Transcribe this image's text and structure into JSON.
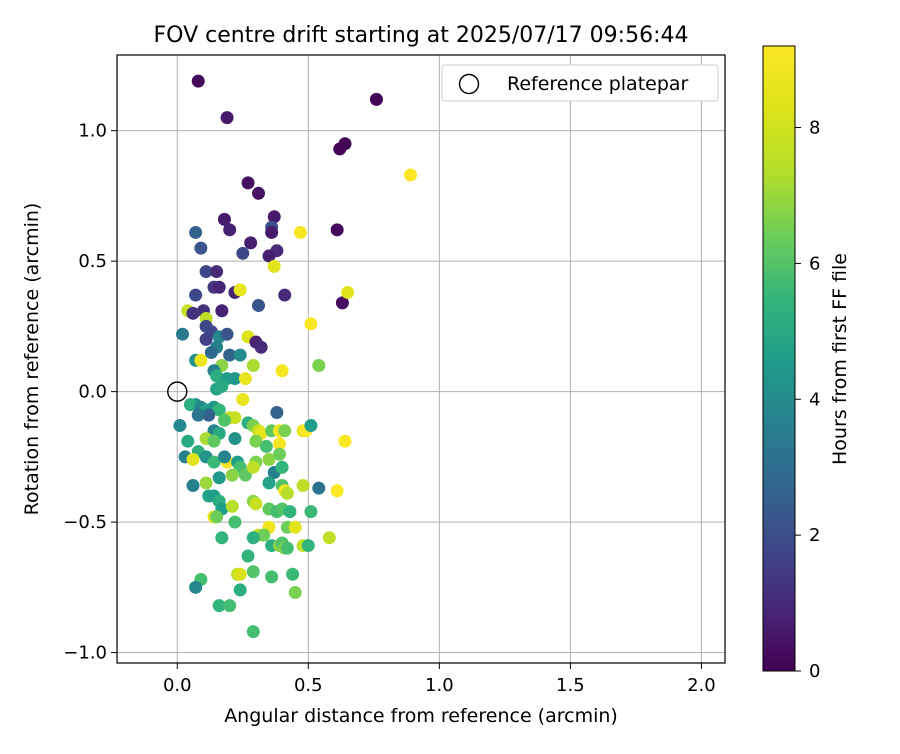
{
  "chart_data": {
    "type": "scatter",
    "title": "FOV centre drift starting at 2025/07/17 09:56:44",
    "xlabel": "Angular distance from reference (arcmin)",
    "ylabel": "Rotation from reference (arcmin)",
    "xlim": [
      -0.23,
      2.09
    ],
    "ylim": [
      -1.04,
      1.29
    ],
    "x_ticks": [
      0.0,
      0.5,
      1.0,
      1.5,
      2.0
    ],
    "x_tick_labels": [
      "0.0",
      "0.5",
      "1.0",
      "1.5",
      "2.0"
    ],
    "y_ticks": [
      -1.0,
      -0.5,
      0.0,
      0.5,
      1.0
    ],
    "y_tick_labels": [
      "−1.0",
      "−0.5",
      "0.0",
      "0.5",
      "1.0"
    ],
    "grid": true,
    "legend": {
      "position": "top-right",
      "entries": [
        "Reference platepar"
      ]
    },
    "reference_point": {
      "x": 0.0,
      "y": 0.0,
      "marker": "open-circle"
    },
    "colorbar": {
      "label": "Hours from first FF file",
      "min": 0,
      "max": 9.2,
      "ticks": [
        0,
        2,
        4,
        6,
        8
      ],
      "colormap": "viridis"
    },
    "points": [
      [
        0.08,
        1.19,
        0.2
      ],
      [
        0.76,
        1.12,
        0.1
      ],
      [
        0.19,
        1.05,
        0.6
      ],
      [
        0.64,
        0.95,
        0.1
      ],
      [
        0.62,
        0.93,
        0.1
      ],
      [
        0.27,
        0.8,
        0.3
      ],
      [
        0.31,
        0.76,
        0.4
      ],
      [
        0.89,
        0.83,
        9.2
      ],
      [
        0.18,
        0.66,
        0.6
      ],
      [
        0.37,
        0.67,
        0.6
      ],
      [
        0.07,
        0.61,
        2.6
      ],
      [
        0.2,
        0.62,
        0.8
      ],
      [
        0.36,
        0.63,
        2.0
      ],
      [
        0.36,
        0.61,
        0.6
      ],
      [
        0.47,
        0.61,
        9.0
      ],
      [
        0.61,
        0.62,
        0.2
      ],
      [
        0.28,
        0.57,
        0.7
      ],
      [
        0.09,
        0.55,
        2.2
      ],
      [
        0.38,
        0.54,
        1.0
      ],
      [
        0.25,
        0.53,
        1.8
      ],
      [
        0.35,
        0.52,
        0.7
      ],
      [
        0.37,
        0.48,
        8.4
      ],
      [
        0.11,
        0.46,
        1.8
      ],
      [
        0.15,
        0.46,
        1.0
      ],
      [
        0.63,
        0.34,
        0.3
      ],
      [
        0.65,
        0.38,
        8.4
      ],
      [
        0.14,
        0.4,
        1.4
      ],
      [
        0.16,
        0.4,
        0.9
      ],
      [
        0.22,
        0.38,
        0.8
      ],
      [
        0.24,
        0.39,
        8.6
      ],
      [
        0.07,
        0.37,
        1.8
      ],
      [
        0.31,
        0.33,
        2.2
      ],
      [
        0.41,
        0.37,
        1.0
      ],
      [
        0.04,
        0.31,
        7.8
      ],
      [
        0.06,
        0.3,
        1.2
      ],
      [
        0.17,
        0.31,
        0.8
      ],
      [
        0.1,
        0.31,
        1.2
      ],
      [
        0.11,
        0.28,
        7.6
      ],
      [
        0.51,
        0.26,
        9.1
      ],
      [
        0.02,
        0.22,
        3.4
      ],
      [
        0.11,
        0.25,
        1.8
      ],
      [
        0.13,
        0.23,
        1.8
      ],
      [
        0.16,
        0.21,
        3.8
      ],
      [
        0.19,
        0.22,
        2.2
      ],
      [
        0.11,
        0.2,
        1.6
      ],
      [
        0.27,
        0.21,
        8.3
      ],
      [
        0.3,
        0.19,
        0.8
      ],
      [
        0.32,
        0.17,
        1.0
      ],
      [
        0.15,
        0.17,
        3.6
      ],
      [
        0.13,
        0.15,
        2.8
      ],
      [
        0.07,
        0.12,
        4.2
      ],
      [
        0.09,
        0.12,
        8.8
      ],
      [
        0.2,
        0.14,
        2.6
      ],
      [
        0.24,
        0.14,
        4.0
      ],
      [
        0.17,
        0.1,
        6.8
      ],
      [
        0.29,
        0.1,
        7.2
      ],
      [
        0.54,
        0.1,
        6.6
      ],
      [
        0.14,
        0.08,
        3.6
      ],
      [
        0.4,
        0.08,
        9.0
      ],
      [
        0.15,
        0.06,
        5.2
      ],
      [
        0.19,
        0.05,
        4.6
      ],
      [
        0.22,
        0.05,
        4.4
      ],
      [
        0.26,
        0.05,
        8.6
      ],
      [
        0.15,
        0.01,
        4.8
      ],
      [
        0.17,
        0.02,
        5.0
      ],
      [
        0.25,
        -0.03,
        8.6
      ],
      [
        0.07,
        -0.05,
        4.2
      ],
      [
        0.05,
        -0.05,
        5.2
      ],
      [
        0.09,
        -0.06,
        3.8
      ],
      [
        0.11,
        -0.07,
        4.6
      ],
      [
        0.14,
        -0.06,
        4.4
      ],
      [
        0.16,
        -0.07,
        5.4
      ],
      [
        0.2,
        -0.1,
        7.6
      ],
      [
        0.22,
        -0.1,
        7.8
      ],
      [
        0.18,
        -0.11,
        6.0
      ],
      [
        0.12,
        -0.09,
        2.6
      ],
      [
        0.08,
        -0.09,
        3.2
      ],
      [
        0.38,
        -0.08,
        2.6
      ],
      [
        0.01,
        -0.13,
        3.8
      ],
      [
        0.14,
        -0.15,
        3.6
      ],
      [
        0.16,
        -0.16,
        5.0
      ],
      [
        0.27,
        -0.12,
        5.2
      ],
      [
        0.29,
        -0.13,
        6.6
      ],
      [
        0.31,
        -0.15,
        7.8
      ],
      [
        0.32,
        -0.16,
        8.6
      ],
      [
        0.36,
        -0.15,
        6.2
      ],
      [
        0.39,
        -0.15,
        9.0
      ],
      [
        0.41,
        -0.15,
        6.6
      ],
      [
        0.48,
        -0.15,
        8.6
      ],
      [
        0.49,
        -0.15,
        9.1
      ],
      [
        0.51,
        -0.13,
        4.6
      ],
      [
        0.64,
        -0.19,
        9.1
      ],
      [
        0.04,
        -0.19,
        5.0
      ],
      [
        0.11,
        -0.18,
        7.2
      ],
      [
        0.14,
        -0.19,
        6.2
      ],
      [
        0.22,
        -0.18,
        4.2
      ],
      [
        0.3,
        -0.19,
        6.6
      ],
      [
        0.39,
        -0.2,
        9.0
      ],
      [
        0.34,
        -0.21,
        5.8
      ],
      [
        0.08,
        -0.23,
        5.2
      ],
      [
        0.11,
        -0.25,
        4.2
      ],
      [
        0.03,
        -0.25,
        3.6
      ],
      [
        0.14,
        -0.27,
        5.6
      ],
      [
        0.19,
        -0.27,
        9.0
      ],
      [
        0.23,
        -0.27,
        4.6
      ],
      [
        0.3,
        -0.27,
        6.6
      ],
      [
        0.35,
        -0.26,
        6.8
      ],
      [
        0.39,
        -0.24,
        6.4
      ],
      [
        0.06,
        -0.26,
        8.4
      ],
      [
        0.18,
        -0.25,
        3.8
      ],
      [
        0.24,
        -0.29,
        5.8
      ],
      [
        0.26,
        -0.32,
        6.2
      ],
      [
        0.29,
        -0.29,
        7.6
      ],
      [
        0.37,
        -0.31,
        3.6
      ],
      [
        0.4,
        -0.29,
        5.4
      ],
      [
        0.21,
        -0.32,
        6.8
      ],
      [
        0.16,
        -0.33,
        4.4
      ],
      [
        0.35,
        -0.35,
        4.8
      ],
      [
        0.06,
        -0.36,
        3.6
      ],
      [
        0.11,
        -0.35,
        7.0
      ],
      [
        0.4,
        -0.36,
        6.0
      ],
      [
        0.41,
        -0.38,
        8.8
      ],
      [
        0.42,
        -0.39,
        7.4
      ],
      [
        0.48,
        -0.36,
        7.6
      ],
      [
        0.54,
        -0.37,
        3.2
      ],
      [
        0.61,
        -0.38,
        9.2
      ],
      [
        0.12,
        -0.4,
        4.8
      ],
      [
        0.14,
        -0.4,
        4.6
      ],
      [
        0.16,
        -0.42,
        5.2
      ],
      [
        0.17,
        -0.45,
        4.6
      ],
      [
        0.21,
        -0.44,
        7.4
      ],
      [
        0.29,
        -0.42,
        6.8
      ],
      [
        0.3,
        -0.43,
        7.8
      ],
      [
        0.35,
        -0.45,
        6.2
      ],
      [
        0.38,
        -0.46,
        5.8
      ],
      [
        0.4,
        -0.45,
        6.0
      ],
      [
        0.43,
        -0.46,
        5.4
      ],
      [
        0.51,
        -0.46,
        5.6
      ],
      [
        0.14,
        -0.48,
        8.6
      ],
      [
        0.15,
        -0.48,
        6.4
      ],
      [
        0.22,
        -0.5,
        5.8
      ],
      [
        0.35,
        -0.52,
        8.8
      ],
      [
        0.42,
        -0.52,
        6.4
      ],
      [
        0.45,
        -0.52,
        8.4
      ],
      [
        0.31,
        -0.55,
        7.6
      ],
      [
        0.33,
        -0.55,
        6.4
      ],
      [
        0.29,
        -0.56,
        5.2
      ],
      [
        0.17,
        -0.56,
        5.4
      ],
      [
        0.36,
        -0.59,
        5.2
      ],
      [
        0.39,
        -0.59,
        6.8
      ],
      [
        0.4,
        -0.58,
        6.0
      ],
      [
        0.41,
        -0.6,
        6.6
      ],
      [
        0.42,
        -0.6,
        5.8
      ],
      [
        0.48,
        -0.59,
        7.6
      ],
      [
        0.5,
        -0.59,
        5.4
      ],
      [
        0.58,
        -0.56,
        7.6
      ],
      [
        0.27,
        -0.63,
        5.4
      ],
      [
        0.23,
        -0.7,
        7.6
      ],
      [
        0.24,
        -0.7,
        8.2
      ],
      [
        0.29,
        -0.69,
        6.0
      ],
      [
        0.36,
        -0.71,
        5.8
      ],
      [
        0.44,
        -0.7,
        5.6
      ],
      [
        0.09,
        -0.72,
        5.8
      ],
      [
        0.07,
        -0.75,
        3.8
      ],
      [
        0.24,
        -0.76,
        5.2
      ],
      [
        0.45,
        -0.77,
        6.6
      ],
      [
        0.16,
        -0.82,
        5.4
      ],
      [
        0.2,
        -0.82,
        5.8
      ],
      [
        0.29,
        -0.92,
        5.8
      ]
    ]
  }
}
